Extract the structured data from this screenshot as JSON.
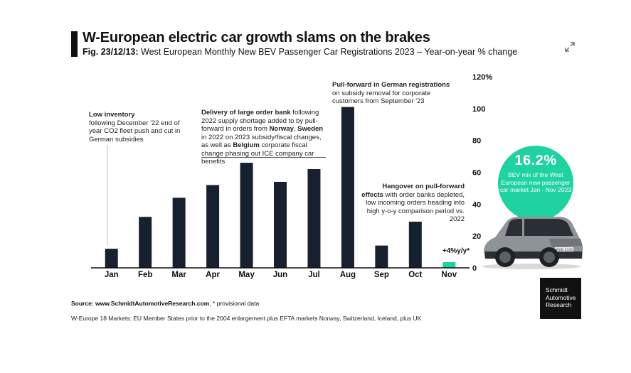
{
  "header": {
    "title": "W-European electric car growth slams on the brakes",
    "fig_ref": "Fig. 23/12/13:",
    "subtitle": "West European Monthly New BEV Passenger Car Registrations 2023 – Year-on-year % change"
  },
  "chart_data": {
    "type": "bar",
    "categories": [
      "Jan",
      "Feb",
      "Mar",
      "Apr",
      "May",
      "Jun",
      "Jul",
      "Aug",
      "Sep",
      "Oct",
      "Nov"
    ],
    "values": [
      12,
      32,
      44,
      52,
      66,
      54,
      62,
      101,
      14,
      29,
      4
    ],
    "provisional": [
      false,
      false,
      false,
      false,
      false,
      false,
      false,
      false,
      false,
      false,
      true
    ],
    "ylim": [
      0,
      120
    ],
    "yticks": [
      0,
      20,
      40,
      60,
      80,
      100,
      120
    ],
    "ytick_labels": [
      "0",
      "20",
      "40",
      "60",
      "80",
      "100",
      "120%"
    ],
    "y_axis_position": "right",
    "grid": false,
    "colors": {
      "bar": "#17202e",
      "highlight": "#1ed3a1"
    },
    "value_labels": {
      "Nov": "+4%y/y*"
    }
  },
  "annotations": {
    "low_inventory": {
      "bold": "Low inventory",
      "text": "following December '22 end of year CO2 fleet push and cut in German subsidies"
    },
    "order_bank": {
      "bold1": "Delivery of large order bank",
      "text1": " following 2022 supply shortage added to by pull-forward in orders from ",
      "bold2": "Norway",
      "text2": ", ",
      "bold3": "Sweden",
      "text3": " in 2022 on 2023 subsidy/fiscal changes, as well as ",
      "bold4": "Belgium",
      "text4": " corporate fiscal change phasing out ICE company car benefits"
    },
    "pull_forward": {
      "bold": "Pull-forward in German registrations",
      "text": " on subsidy removal for corporate customers from September '23"
    },
    "hangover": {
      "bold": "Hangover on pull-forward effects",
      "text": " with order banks depleted, low incoming orders heading into high y-o-y comparison period vs. 2022"
    }
  },
  "badge": {
    "value": "16.2%",
    "text": "BEV mix of the West European new passenger car market Jan - Nov 2023"
  },
  "brand": {
    "line1": "Schmidt",
    "line2": "Automotive",
    "line3": "Research"
  },
  "car_plate": "WOB 2345",
  "footer": {
    "source_label": "Source: www.SchmidtAutomotiveResearch.com",
    "source_rest": ", * provisional data",
    "note": "W-Europe 18 Markets: EU Member States prior to the 2004 enlargement plus EFTA markets Norway, Switzerland, Iceland, plus UK"
  }
}
